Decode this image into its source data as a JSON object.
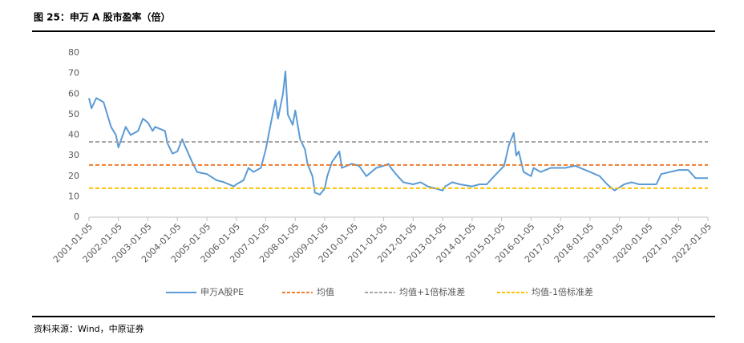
{
  "chart_data": {
    "type": "line",
    "title": "图 25：申万 A 股市盈率（倍）",
    "source": "资料来源：Wind，中原证券",
    "x": [
      "2001-01-05",
      "2001-02-05",
      "2001-04-05",
      "2001-07-05",
      "2001-10-05",
      "2001-12-05",
      "2002-01-05",
      "2002-04-05",
      "2002-06-05",
      "2002-09-05",
      "2002-11-05",
      "2003-01-05",
      "2003-03-05",
      "2003-04-05",
      "2003-08-05",
      "2003-09-05",
      "2003-11-05",
      "2004-01-05",
      "2004-03-05",
      "2004-04-05",
      "2004-07-05",
      "2004-09-05",
      "2005-01-05",
      "2005-05-05",
      "2005-08-05",
      "2005-12-05",
      "2006-01-05",
      "2006-04-05",
      "2006-06-05",
      "2006-08-05",
      "2006-11-05",
      "2007-01-05",
      "2007-03-05",
      "2007-05-05",
      "2007-06-05",
      "2007-08-05",
      "2007-09-05",
      "2007-10-05",
      "2007-12-05",
      "2008-01-05",
      "2008-03-05",
      "2008-05-05",
      "2008-06-05",
      "2008-08-05",
      "2008-09-05",
      "2008-11-05",
      "2009-01-05",
      "2009-02-05",
      "2009-04-05",
      "2009-07-05",
      "2009-08-05",
      "2009-12-05",
      "2010-03-05",
      "2010-06-05",
      "2010-10-05",
      "2011-01-05",
      "2011-03-05",
      "2011-04-05",
      "2011-06-05",
      "2011-09-05",
      "2012-01-05",
      "2012-04-05",
      "2012-07-05",
      "2012-10-05",
      "2013-01-05",
      "2013-02-05",
      "2013-05-05",
      "2013-08-05",
      "2014-01-05",
      "2014-04-05",
      "2014-07-05",
      "2014-10-05",
      "2015-02-05",
      "2015-04-05",
      "2015-06-05",
      "2015-07-05",
      "2015-08-05",
      "2015-10-05",
      "2016-01-05",
      "2016-02-05",
      "2016-05-05",
      "2016-09-05",
      "2017-03-05",
      "2017-07-05",
      "2018-01-05",
      "2018-05-05",
      "2018-08-05",
      "2018-11-05",
      "2019-03-05",
      "2019-06-05",
      "2019-09-05",
      "2020-01-05",
      "2020-04-05",
      "2020-06-05",
      "2021-01-05",
      "2021-05-05",
      "2021-08-05",
      "2022-01-05"
    ],
    "series": [
      {
        "name": "申万A股PE",
        "color": "#5b9bd5",
        "values": [
          58,
          53,
          58,
          56,
          44,
          40,
          34,
          44,
          40,
          42,
          48,
          46,
          42,
          44,
          42,
          36,
          31,
          32,
          38,
          35,
          27,
          22,
          21,
          18,
          17,
          15,
          16,
          18,
          24,
          22,
          24,
          33,
          45,
          57,
          48,
          60,
          71,
          50,
          45,
          52,
          38,
          33,
          26,
          20,
          12,
          11,
          14,
          20,
          27,
          32,
          24,
          26,
          25,
          20,
          24,
          25,
          26,
          24,
          21,
          17,
          16,
          17,
          15,
          14,
          13,
          15,
          17,
          16,
          15,
          16,
          16,
          20,
          25,
          35,
          41,
          30,
          32,
          22,
          20,
          24,
          22,
          24,
          24,
          25,
          22,
          20,
          16,
          13,
          16,
          17,
          16,
          16,
          16,
          21,
          23,
          23,
          19,
          19
        ]
      },
      {
        "name": "均值",
        "color": "#ed7d31",
        "value": 25.4,
        "dashed": true
      },
      {
        "name": "均值+1倍标准差",
        "color": "#a5a5a5",
        "value": 36.7,
        "dashed": true
      },
      {
        "name": "均值-1倍标准差",
        "color": "#ffc000",
        "value": 14.1,
        "dashed": true
      }
    ],
    "xlim": [
      "2001-01-05",
      "2022-01-05"
    ],
    "xticks": [
      "2001-01-05",
      "2002-01-05",
      "2003-01-05",
      "2004-01-05",
      "2005-01-05",
      "2006-01-05",
      "2007-01-05",
      "2008-01-05",
      "2009-01-05",
      "2010-01-05",
      "2011-01-05",
      "2012-01-05",
      "2013-01-05",
      "2014-01-05",
      "2015-01-05",
      "2016-01-05",
      "2017-01-05",
      "2018-01-05",
      "2019-01-05",
      "2020-01-05",
      "2021-01-05",
      "2022-01-05"
    ],
    "ylim": [
      0,
      80
    ],
    "yticks": [
      0,
      10,
      20,
      30,
      40,
      50,
      60,
      70,
      80
    ],
    "legend": "bottom"
  }
}
